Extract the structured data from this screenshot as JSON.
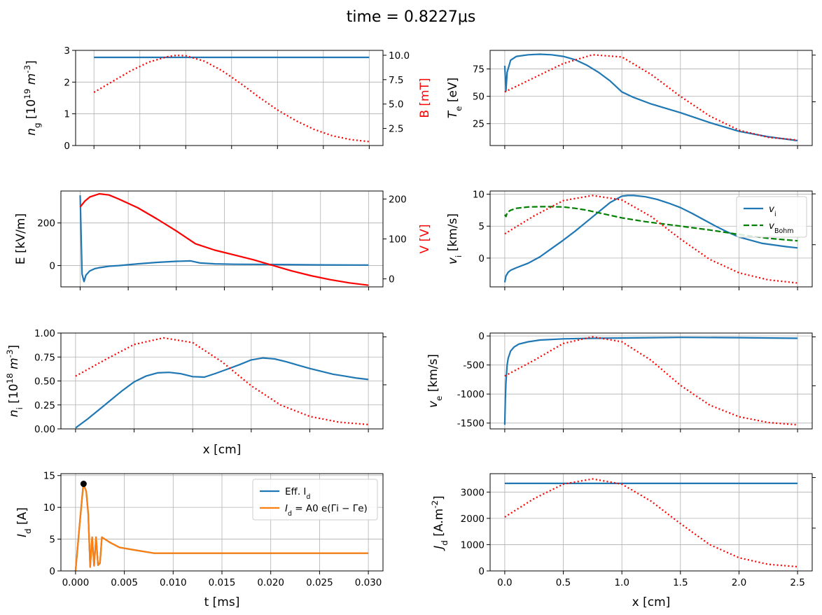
{
  "figure": {
    "suptitle": "time = 0.8227μs"
  },
  "colors": {
    "blue": "#1f77b4",
    "orange": "#ff7f0e",
    "red": "#ff0000",
    "green": "#008000",
    "grid": "#b0b0b0"
  },
  "chart_data": [
    {
      "id": "ng",
      "type": "line",
      "grid": true,
      "xlim": [
        -0.002,
        0.0315
      ],
      "xticks": [
        0,
        0.005,
        0.01,
        0.015,
        0.02,
        0.025,
        0.03
      ],
      "xticklabels": [],
      "ylim": [
        0,
        3
      ],
      "yticks": [
        0,
        1,
        2,
        3
      ],
      "yticklabels": [
        "0",
        "1",
        "2",
        "3"
      ],
      "ylabel": "n_g [10^19 m^-3]",
      "series": [
        {
          "color": "blue",
          "style": "solid",
          "axis": "left",
          "x": [
            0,
            0.03
          ],
          "y": [
            2.78,
            2.78
          ]
        },
        {
          "color": "red",
          "style": "dotted",
          "axis": "right",
          "x": [
            0,
            0.002,
            0.004,
            0.006,
            0.008,
            0.009,
            0.01,
            0.012,
            0.014,
            0.016,
            0.018,
            0.02,
            0.022,
            0.024,
            0.026,
            0.028,
            0.03
          ],
          "y": [
            6.2,
            7.3,
            8.4,
            9.3,
            9.85,
            10.0,
            9.95,
            9.4,
            8.4,
            7.1,
            5.7,
            4.4,
            3.3,
            2.4,
            1.75,
            1.35,
            1.15
          ]
        }
      ],
      "right_axis": {
        "ylabel": "B [mT]",
        "ylabel_color": "red",
        "ylim": [
          0.75,
          10.5
        ],
        "yticks": [
          2.5,
          5.0,
          7.5,
          10.0
        ],
        "yticklabels": [
          "2.5",
          "5.0",
          "7.5",
          "10.0"
        ]
      }
    },
    {
      "id": "Te",
      "type": "line",
      "grid": true,
      "xlim": [
        -0.125,
        2.625
      ],
      "xticks": [
        0,
        0.5,
        1,
        1.5,
        2,
        2.5
      ],
      "xticklabels": [],
      "ylim": [
        5,
        92
      ],
      "yticks": [
        25,
        50,
        75
      ],
      "yticklabels": [
        "25",
        "50",
        "75"
      ],
      "ylabel": "T_e [eV]",
      "series": [
        {
          "color": "blue",
          "style": "solid",
          "axis": "left",
          "x": [
            0,
            0.01,
            0.02,
            0.05,
            0.1,
            0.2,
            0.3,
            0.4,
            0.5,
            0.6,
            0.7,
            0.8,
            0.9,
            1.0,
            1.1,
            1.25,
            1.5,
            1.75,
            2.0,
            2.25,
            2.5
          ],
          "y": [
            78,
            55,
            72,
            83,
            86.5,
            88,
            88.5,
            88,
            86.5,
            83.5,
            78.5,
            72,
            64,
            54,
            49,
            43,
            35,
            26,
            18,
            13,
            9.5
          ]
        },
        {
          "color": "red",
          "style": "dotted",
          "axis": "left",
          "x": [
            0,
            0.25,
            0.5,
            0.75,
            1.0,
            1.25,
            1.5,
            1.75,
            2.0,
            2.25,
            2.5
          ],
          "y": [
            54,
            67,
            80,
            88,
            86,
            70,
            50,
            32,
            19,
            12.5,
            10
          ]
        }
      ],
      "right_axis": {
        "yticks_frac": [
          0.95,
          0.46
        ]
      }
    },
    {
      "id": "E",
      "type": "line",
      "grid": true,
      "xlim": [
        -0.002,
        0.0315
      ],
      "xticks": [
        0,
        0.005,
        0.01,
        0.015,
        0.02,
        0.025,
        0.03
      ],
      "xticklabels": [],
      "ylim": [
        -100,
        350
      ],
      "yticks": [
        0,
        200
      ],
      "yticklabels": [
        "0",
        "200"
      ],
      "ylabel": "E [kV/m]",
      "series": [
        {
          "color": "blue",
          "style": "solid",
          "axis": "left",
          "x": [
            0,
            0.0001,
            0.0002,
            0.0004,
            0.0006,
            0.001,
            0.0015,
            0.002,
            0.003,
            0.004,
            0.006,
            0.008,
            0.01,
            0.0115,
            0.0125,
            0.014,
            0.016,
            0.02,
            0.025,
            0.03
          ],
          "y": [
            330,
            150,
            -40,
            -75,
            -45,
            -25,
            -15,
            -10,
            -3,
            0,
            8,
            15,
            20,
            22,
            12,
            8,
            6,
            5,
            3,
            2
          ]
        },
        {
          "color": "red",
          "style": "solid",
          "axis": "right",
          "x": [
            0,
            0.0005,
            0.001,
            0.002,
            0.003,
            0.004,
            0.006,
            0.008,
            0.01,
            0.012,
            0.014,
            0.016,
            0.018,
            0.02,
            0.022,
            0.024,
            0.026,
            0.028,
            0.03
          ],
          "y": [
            180,
            195,
            205,
            213,
            210,
            200,
            178,
            150,
            120,
            88,
            72,
            60,
            48,
            34,
            20,
            8,
            -2,
            -10,
            -16
          ]
        }
      ],
      "right_axis": {
        "ylabel": "V [V]",
        "ylabel_color": "red",
        "ylim": [
          -20,
          220
        ],
        "yticks": [
          0,
          100,
          200
        ],
        "yticklabels": [
          "0",
          "100",
          "200"
        ]
      }
    },
    {
      "id": "vi",
      "type": "line",
      "grid": true,
      "xlim": [
        -0.125,
        2.625
      ],
      "xticks": [
        0,
        0.5,
        1,
        1.5,
        2,
        2.5
      ],
      "xticklabels": [],
      "ylim": [
        -4.5,
        10.5
      ],
      "yticks": [
        0,
        5,
        10
      ],
      "yticklabels": [
        "0",
        "5",
        "10"
      ],
      "ylabel": "v_i [km/s]",
      "series": [
        {
          "name": "v_i",
          "color": "blue",
          "style": "solid",
          "axis": "left",
          "x": [
            0,
            0.01,
            0.03,
            0.05,
            0.1,
            0.2,
            0.3,
            0.4,
            0.5,
            0.6,
            0.7,
            0.8,
            0.9,
            1.0,
            1.05,
            1.1,
            1.2,
            1.3,
            1.4,
            1.5,
            1.6,
            1.7,
            1.8,
            1.9,
            2.0,
            2.2,
            2.4,
            2.5
          ],
          "y": [
            -3.8,
            -2.8,
            -2.2,
            -1.9,
            -1.5,
            -0.8,
            0.2,
            1.5,
            2.8,
            4.2,
            5.7,
            7.2,
            8.7,
            9.7,
            9.8,
            9.8,
            9.6,
            9.2,
            8.6,
            7.9,
            7.0,
            6.0,
            5.0,
            4.1,
            3.3,
            2.3,
            1.8,
            1.6
          ]
        },
        {
          "name": "v_Bohm",
          "color": "green",
          "style": "dashed",
          "axis": "left",
          "x": [
            0,
            0.01,
            0.02,
            0.05,
            0.1,
            0.2,
            0.3,
            0.4,
            0.5,
            0.6,
            0.7,
            0.8,
            0.9,
            1.0,
            1.2,
            1.5,
            1.75,
            2.0,
            2.25,
            2.5
          ],
          "y": [
            6.8,
            6.5,
            7.1,
            7.5,
            7.8,
            8.0,
            8.05,
            8.05,
            8.0,
            7.8,
            7.5,
            7.1,
            6.7,
            6.3,
            5.7,
            5.0,
            4.4,
            3.7,
            3.1,
            2.7
          ]
        },
        {
          "color": "red",
          "style": "dotted",
          "axis": "left",
          "x": [
            0,
            0.25,
            0.5,
            0.75,
            1.0,
            1.25,
            1.5,
            1.75,
            2.0,
            2.25,
            2.5
          ],
          "y": [
            3.8,
            6.6,
            9.0,
            9.8,
            9.1,
            6.5,
            3.0,
            -0.2,
            -2.3,
            -3.4,
            -3.9
          ]
        }
      ],
      "legend": {
        "location": "upper right",
        "entries": [
          "v_i",
          "v_Bohm"
        ]
      },
      "right_axis": {
        "yticks_frac": [
          0.97,
          0.44
        ]
      }
    },
    {
      "id": "ni",
      "type": "line",
      "grid": true,
      "xlim": [
        -0.125,
        2.625
      ],
      "xticks": [
        0,
        0.5,
        1,
        1.5,
        2,
        2.5
      ],
      "xticklabels": [],
      "xlabel": "x [cm]",
      "ylim": [
        0,
        1.0
      ],
      "yticks": [
        0,
        0.25,
        0.5,
        0.75,
        1.0
      ],
      "yticklabels": [
        "0.00",
        "0.25",
        "0.50",
        "0.75",
        "1.00"
      ],
      "ylabel": "n_i [10^18 m^-3]",
      "series": [
        {
          "color": "blue",
          "style": "solid",
          "axis": "left",
          "x": [
            0,
            0.1,
            0.2,
            0.3,
            0.4,
            0.5,
            0.6,
            0.7,
            0.8,
            0.9,
            1.0,
            1.1,
            1.2,
            1.3,
            1.4,
            1.5,
            1.6,
            1.7,
            1.8,
            1.9,
            2.0,
            2.1,
            2.2,
            2.3,
            2.4,
            2.5
          ],
          "y": [
            0.01,
            0.1,
            0.2,
            0.3,
            0.4,
            0.49,
            0.55,
            0.585,
            0.59,
            0.575,
            0.545,
            0.54,
            0.58,
            0.625,
            0.67,
            0.72,
            0.74,
            0.73,
            0.7,
            0.665,
            0.63,
            0.6,
            0.57,
            0.55,
            0.53,
            0.515
          ]
        },
        {
          "color": "red",
          "style": "dotted",
          "axis": "left",
          "x": [
            0,
            0.25,
            0.5,
            0.75,
            1.0,
            1.25,
            1.5,
            1.75,
            2.0,
            2.25,
            2.5
          ],
          "y": [
            0.55,
            0.72,
            0.88,
            0.95,
            0.9,
            0.7,
            0.45,
            0.25,
            0.13,
            0.07,
            0.045
          ]
        }
      ],
      "right_axis": {
        "yticks_frac": [
          0.96,
          0.46
        ]
      }
    },
    {
      "id": "ve",
      "type": "line",
      "grid": true,
      "xlim": [
        -0.125,
        2.625
      ],
      "xticks": [
        0,
        0.5,
        1,
        1.5,
        2,
        2.5
      ],
      "xticklabels": [],
      "ylim": [
        -1600,
        50
      ],
      "yticks": [
        0,
        -500,
        -1000,
        -1500
      ],
      "yticklabels": [
        "0",
        "-500",
        "-1000",
        "-1500"
      ],
      "ylabel": "v_e [km/s]",
      "series": [
        {
          "color": "blue",
          "style": "solid",
          "axis": "left",
          "x": [
            0,
            0.005,
            0.01,
            0.02,
            0.03,
            0.05,
            0.08,
            0.12,
            0.2,
            0.3,
            0.5,
            0.75,
            1.0,
            1.5,
            2.0,
            2.5
          ],
          "y": [
            -1530,
            -1100,
            -800,
            -500,
            -380,
            -260,
            -190,
            -140,
            -100,
            -70,
            -50,
            -40,
            -35,
            -25,
            -30,
            -40
          ]
        },
        {
          "color": "red",
          "style": "dotted",
          "axis": "left",
          "x": [
            0,
            0.25,
            0.5,
            0.75,
            1.0,
            1.25,
            1.5,
            1.75,
            2.0,
            2.25,
            2.5
          ],
          "y": [
            -690,
            -420,
            -130,
            -15,
            -100,
            -420,
            -850,
            -1190,
            -1390,
            -1490,
            -1530
          ]
        }
      ],
      "right_axis": {
        "yticks_frac": [
          0.96,
          0.45
        ]
      }
    },
    {
      "id": "Id",
      "type": "line",
      "grid": true,
      "xlim": [
        -0.0015,
        0.0315
      ],
      "xticks": [
        0,
        0.005,
        0.01,
        0.015,
        0.02,
        0.025,
        0.03
      ],
      "xticklabels": [
        "0.000",
        "0.005",
        "0.010",
        "0.015",
        "0.020",
        "0.025",
        "0.030"
      ],
      "xlabel": "t [ms]",
      "ylim": [
        0,
        15.3
      ],
      "yticks": [
        0,
        5,
        10,
        15
      ],
      "yticklabels": [
        "0",
        "5",
        "10",
        "15"
      ],
      "ylabel": "I_d [A]",
      "series": [
        {
          "name": "Eff. I_d",
          "color": "blue",
          "style": "solid",
          "axis": "left",
          "x": [
            0,
            0.0004,
            0.0008,
            0.0011,
            0.0013,
            0.0015,
            0.0017,
            0.0019,
            0.0021,
            0.0023,
            0.0025,
            0.0027,
            0.003,
            0.0035,
            0.0045,
            0.006,
            0.008,
            0.01,
            0.015,
            0.02,
            0.025,
            0.03
          ],
          "y": [
            0,
            7.0,
            13.7,
            12.5,
            9.0,
            0.6,
            5.3,
            0.8,
            5.3,
            0.9,
            1.2,
            5.3,
            5.0,
            4.5,
            3.7,
            3.3,
            2.8,
            2.8,
            2.8,
            2.8,
            2.8,
            2.8
          ]
        },
        {
          "name": "I_d = A0 e(Γi − Γe)",
          "color": "orange",
          "style": "solid",
          "axis": "left",
          "x": [
            0,
            0.0004,
            0.0008,
            0.0011,
            0.0013,
            0.0015,
            0.0017,
            0.0019,
            0.0021,
            0.0023,
            0.0025,
            0.0027,
            0.003,
            0.0035,
            0.0045,
            0.006,
            0.008,
            0.01,
            0.015,
            0.02,
            0.025,
            0.03
          ],
          "y": [
            0,
            7.0,
            13.7,
            12.5,
            9.0,
            0.6,
            5.3,
            0.8,
            5.3,
            0.9,
            1.2,
            5.3,
            5.0,
            4.5,
            3.7,
            3.3,
            2.8,
            2.8,
            2.8,
            2.8,
            2.8,
            2.8
          ]
        }
      ],
      "marker": {
        "x": 0.0008227,
        "y": 13.7,
        "color": "#000000"
      },
      "legend": {
        "location": "upper right",
        "entries": [
          "Eff. I_d",
          "I_d = A0 e(Γi − Γe)"
        ]
      }
    },
    {
      "id": "Jd",
      "type": "line",
      "grid": true,
      "xlim": [
        -0.125,
        2.625
      ],
      "xticks": [
        0,
        0.5,
        1,
        1.5,
        2,
        2.5
      ],
      "xticklabels": [
        "0.0",
        "0.5",
        "1.0",
        "1.5",
        "2.0",
        "2.5"
      ],
      "xlabel": "x [cm]",
      "ylim": [
        0,
        3700
      ],
      "yticks": [
        0,
        1000,
        2000,
        3000
      ],
      "yticklabels": [
        "0",
        "1000",
        "2000",
        "3000"
      ],
      "ylabel": "J_d [A.m^-2]",
      "series": [
        {
          "color": "blue",
          "style": "solid",
          "axis": "left",
          "x": [
            0,
            2.5
          ],
          "y": [
            3330,
            3330
          ]
        },
        {
          "color": "red",
          "style": "dotted",
          "axis": "left",
          "x": [
            0,
            0.25,
            0.5,
            0.75,
            1.0,
            1.25,
            1.5,
            1.75,
            2.0,
            2.25,
            2.5
          ],
          "y": [
            2050,
            2750,
            3300,
            3500,
            3300,
            2650,
            1800,
            1000,
            500,
            250,
            160
          ]
        }
      ],
      "right_axis": {
        "yticks_frac": [
          0.96,
          0.44
        ]
      }
    }
  ]
}
